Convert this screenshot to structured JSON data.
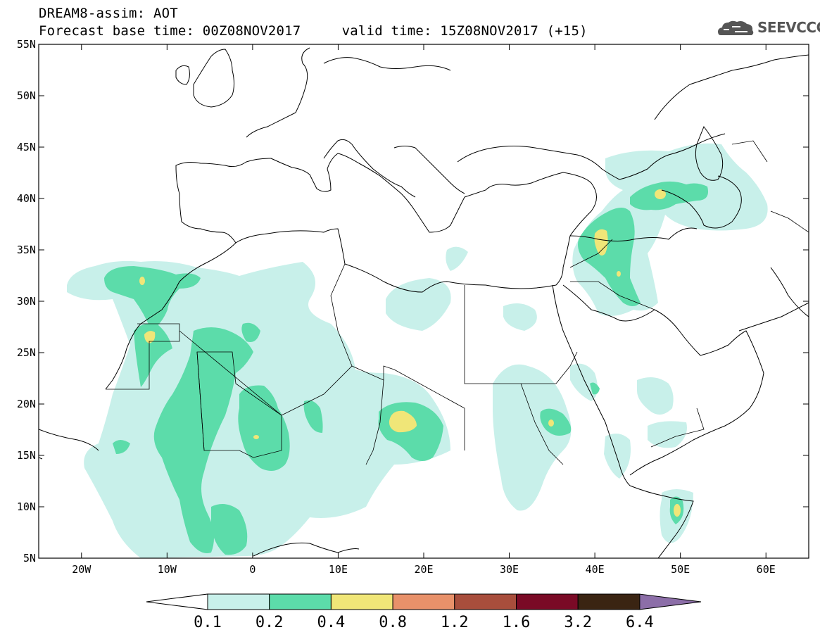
{
  "header": {
    "title_line1": "DREAM8-assim: AOT",
    "title_line2": "Forecast base time: 00Z08NOV2017     valid time: 15Z08NOV2017 (+15)"
  },
  "logo": {
    "text": "SEEVCCC",
    "icon": "cloud-logo-icon"
  },
  "map": {
    "lon_range": [
      -25,
      65
    ],
    "lat_range": [
      5,
      55
    ],
    "lat_ticks": [
      {
        "v": 55,
        "label": "55N"
      },
      {
        "v": 50,
        "label": "50N"
      },
      {
        "v": 45,
        "label": "45N"
      },
      {
        "v": 40,
        "label": "40N"
      },
      {
        "v": 35,
        "label": "35N"
      },
      {
        "v": 30,
        "label": "30N"
      },
      {
        "v": 25,
        "label": "25N"
      },
      {
        "v": 20,
        "label": "20N"
      },
      {
        "v": 15,
        "label": "15N"
      },
      {
        "v": 10,
        "label": "10N"
      },
      {
        "v": 5,
        "label": "5N"
      }
    ],
    "lon_ticks": [
      {
        "v": -20,
        "label": "20W"
      },
      {
        "v": -10,
        "label": "10W"
      },
      {
        "v": 0,
        "label": "0"
      },
      {
        "v": 10,
        "label": "10E"
      },
      {
        "v": 20,
        "label": "20E"
      },
      {
        "v": 30,
        "label": "30E"
      },
      {
        "v": 40,
        "label": "40E"
      },
      {
        "v": 50,
        "label": "50E"
      },
      {
        "v": 60,
        "label": "60E"
      }
    ]
  },
  "colorbar": {
    "levels": [
      "0.1",
      "0.2",
      "0.4",
      "0.8",
      "1.2",
      "1.6",
      "3.2",
      "6.4"
    ],
    "colors": [
      "#c8f0ea",
      "#5cdcaa",
      "#f0e678",
      "#e8916a",
      "#a84e3c",
      "#7a0a26",
      "#3a2412",
      "#8c6ea8"
    ]
  }
}
